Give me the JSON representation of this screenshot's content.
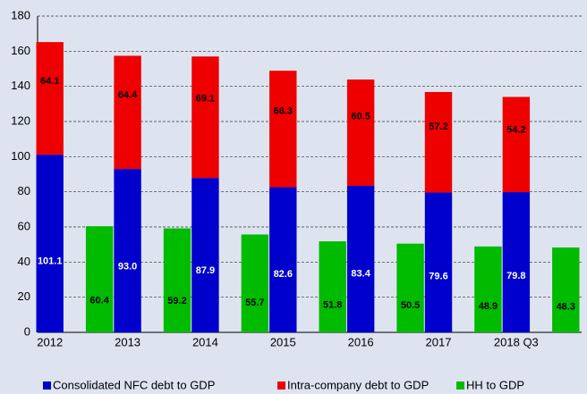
{
  "chart_data": {
    "type": "bar",
    "categories": [
      "2012",
      "2013",
      "2014",
      "2015",
      "2016",
      "2017",
      "2018 Q3"
    ],
    "series": [
      {
        "name": "Consolidated NFC debt to GDP",
        "color": "#0000cc",
        "stack": "corporate",
        "values": [
          101.1,
          93.0,
          87.9,
          82.6,
          83.4,
          79.6,
          79.8
        ],
        "value_labels": [
          "101.1",
          "93.0",
          "87.9",
          "82.6",
          "83.4",
          "79.6",
          "79.8"
        ]
      },
      {
        "name": "Intra-company debt to GDP",
        "color": "#ee0000",
        "stack": "corporate",
        "values": [
          64.1,
          64.4,
          69.1,
          66.3,
          60.5,
          57.2,
          54.2
        ]
      },
      {
        "name": "HH to GDP",
        "color": "#00bb00",
        "stack": "household",
        "values": [
          60.4,
          59.2,
          55.7,
          51.8,
          50.5,
          48.9,
          48.3
        ]
      }
    ],
    "ylim": [
      0,
      180
    ],
    "yticks": [
      0,
      20,
      40,
      60,
      80,
      100,
      120,
      140,
      160,
      180
    ],
    "grid": true,
    "legend": "bottom"
  }
}
